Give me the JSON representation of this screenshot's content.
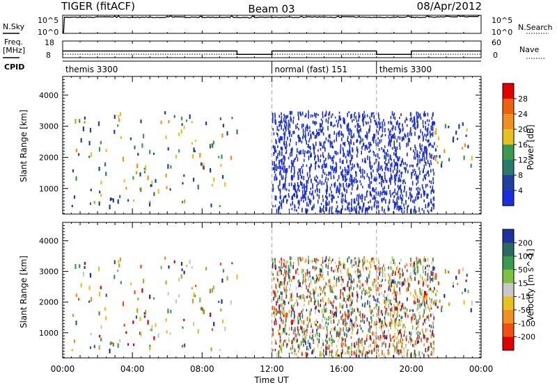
{
  "header": {
    "title": "TIGER (fitACF)",
    "beam": "Beam 03",
    "date": "08/Apr/2012"
  },
  "nsky_panel": {
    "left_label": "N.Sky",
    "left_tick_top": "10^5",
    "left_tick_bottom": "10^0",
    "right_tick_top": "10^5",
    "right_tick_bottom": "10^0",
    "right_label": "N.Search"
  },
  "freq_panel": {
    "left_label_line1": "Freq.",
    "left_label_line2": "[MHz]",
    "left_tick_top": "18",
    "left_tick_bottom": "8",
    "right_tick_top": "60",
    "right_tick_bottom": "0",
    "right_label": "Nave"
  },
  "cpid_panel": {
    "label": "CPID",
    "segments": [
      {
        "start_hour": 0,
        "end_hour": 12,
        "text": "themis 3300"
      },
      {
        "start_hour": 12,
        "end_hour": 18,
        "text": "normal (fast) 151"
      },
      {
        "start_hour": 18,
        "end_hour": 24,
        "text": "themis 3300"
      }
    ]
  },
  "x_axis": {
    "label": "Time UT",
    "ticks": [
      "00:00",
      "04:00",
      "08:00",
      "12:00",
      "16:00",
      "20:00",
      "00:00"
    ],
    "tick_hours": [
      0,
      4,
      8,
      12,
      16,
      20,
      24
    ]
  },
  "power_panel": {
    "ylabel": "Slant Range [km]",
    "yticks": [
      "1000",
      "2000",
      "3000",
      "4000"
    ],
    "ytick_values": [
      1000,
      2000,
      3000,
      4000
    ],
    "colorbar_label": "Power [dB]",
    "colorbar_ticks": [
      "4",
      "8",
      "12",
      "16",
      "20",
      "24",
      "28"
    ],
    "colors": [
      "#1a2ee0",
      "#2040a0",
      "#2a7a6a",
      "#3a9a50",
      "#e8c020",
      "#f09020",
      "#f06010",
      "#e00000"
    ]
  },
  "velocity_panel": {
    "ylabel": "Slant Range [km]",
    "yticks": [
      "1000",
      "2000",
      "3000",
      "4000"
    ],
    "ytick_values": [
      1000,
      2000,
      3000,
      4000
    ],
    "colorbar_label": "Velocity [m s^-1]",
    "colorbar_ticks": [
      "200",
      "100",
      "50",
      "15",
      "-15",
      "-50",
      "-100",
      "-200"
    ],
    "colors": [
      "#2030a0",
      "#2a6a60",
      "#3a9a50",
      "#80c040",
      "#c8c8c8",
      "#e8c020",
      "#f09020",
      "#f05010",
      "#e00000"
    ]
  },
  "chart_data": {
    "type": "heatmap",
    "x_range_hours": [
      0,
      24
    ],
    "y_range_km": [
      180,
      4600
    ],
    "regions": [
      {
        "t0": 0.5,
        "t1": 10.0,
        "r0": 400,
        "r1": 3500,
        "density": "sparse",
        "mode": "themis"
      },
      {
        "t0": 12.0,
        "t1": 18.0,
        "r0": 200,
        "r1": 3450,
        "density": "dense",
        "mode": "normal"
      },
      {
        "t0": 18.0,
        "t1": 21.3,
        "r0": 200,
        "r1": 3450,
        "density": "dense",
        "mode": "themis"
      },
      {
        "t0": 21.3,
        "t1": 23.5,
        "r0": 1700,
        "r1": 3200,
        "density": "sparse",
        "mode": "themis"
      }
    ],
    "noise_series": {
      "values_log10": [
        4.7,
        4.7,
        4.8,
        4.7,
        4.7,
        4.7,
        4.8,
        4.7,
        4.7,
        4.7,
        4.6,
        4.7,
        4.7,
        4.7,
        4.8,
        4.7,
        4.8,
        4.7,
        4.7,
        4.8,
        4.7,
        4.8,
        4.9,
        4.9
      ],
      "hours": [
        0,
        1,
        2,
        3,
        4,
        5,
        6,
        7,
        8,
        9,
        10,
        11,
        12,
        13,
        14,
        15,
        16,
        17,
        18,
        19,
        20,
        21,
        22,
        23
      ]
    },
    "freq_series": [
      {
        "t0": 0.0,
        "t1": 10.0,
        "value_mhz": 12.0
      },
      {
        "t0": 10.0,
        "t1": 12.0,
        "value_mhz": 10.0
      },
      {
        "t0": 12.0,
        "t1": 18.0,
        "value_mhz": 12.0
      },
      {
        "t0": 18.0,
        "t1": 20.0,
        "value_mhz": 10.0
      },
      {
        "t0": 20.0,
        "t1": 24.0,
        "value_mhz": 12.0
      }
    ]
  }
}
